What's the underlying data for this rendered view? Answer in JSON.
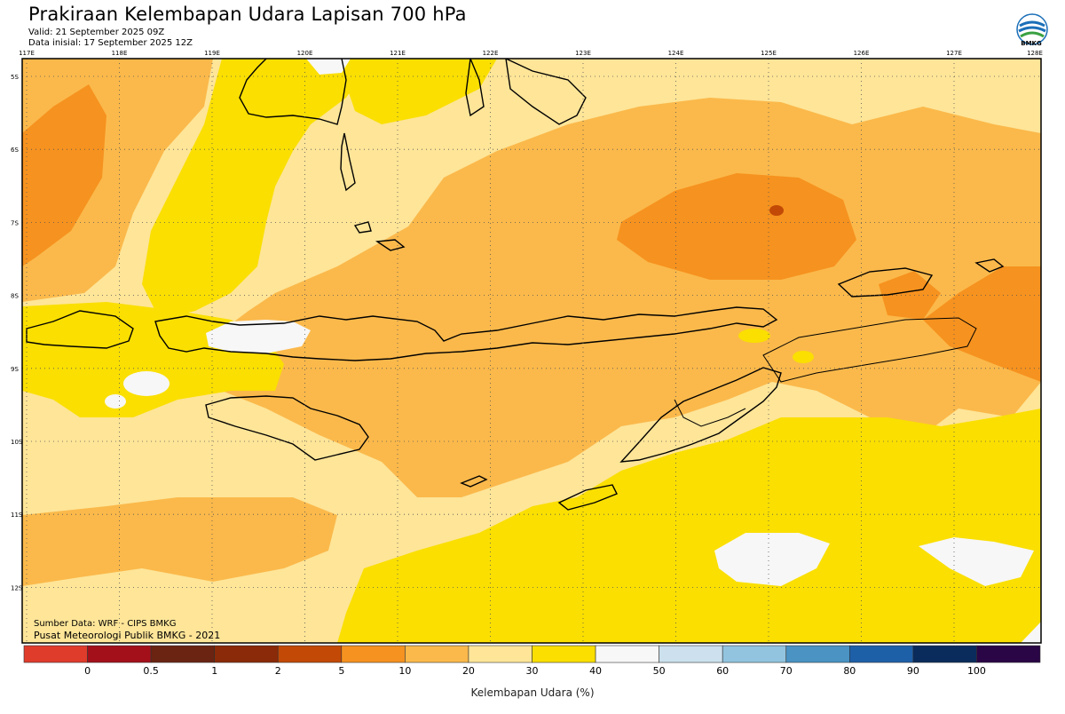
{
  "header": {
    "title": "Prakiraan Kelembapan Udara Lapisan 700 hPa",
    "valid": "Valid: 21 September 2025 09Z",
    "init": "Data inisial: 17 September 2025 12Z"
  },
  "logo": {
    "text": "BMKG",
    "icon": "bmkg-logo-icon"
  },
  "axes": {
    "lon_labels": [
      "117E",
      "118E",
      "119E",
      "120E",
      "121E",
      "122E",
      "123E",
      "124E",
      "125E",
      "126E",
      "127E",
      "128E"
    ],
    "lat_labels": [
      "5S",
      "6S",
      "7S",
      "8S",
      "9S",
      "10S",
      "11S",
      "12S"
    ]
  },
  "footer": {
    "source": "Sumber Data: WRF - CIPS BMKG",
    "credit": "Pusat Meteorologi Publik BMKG - 2021"
  },
  "colorbar": {
    "title": "Kelembapan Udara (%)",
    "ticks": [
      "0",
      "0.5",
      "1",
      "2",
      "5",
      "10",
      "20",
      "30",
      "40",
      "50",
      "60",
      "70",
      "80",
      "90",
      "100"
    ],
    "colors": [
      "#e03c2c",
      "#a3101a",
      "#6b2412",
      "#8a2a08",
      "#c24a06",
      "#f6921f",
      "#fbb94b",
      "#fee598",
      "#fadf00",
      "#f7f7f7",
      "#cce1ed",
      "#92c4df",
      "#4a93c3",
      "#1e60a8",
      "#0a2c5c",
      "#2a0646"
    ]
  },
  "map": {
    "background_value": "20–30%",
    "palette": {
      "c30_40": "#fadf00",
      "c20_30": "#fee598",
      "c10_20": "#fbb94b",
      "c5_10": "#f6921f",
      "c2_5": "#c24a06",
      "c40_50": "#f7f7f7"
    }
  }
}
